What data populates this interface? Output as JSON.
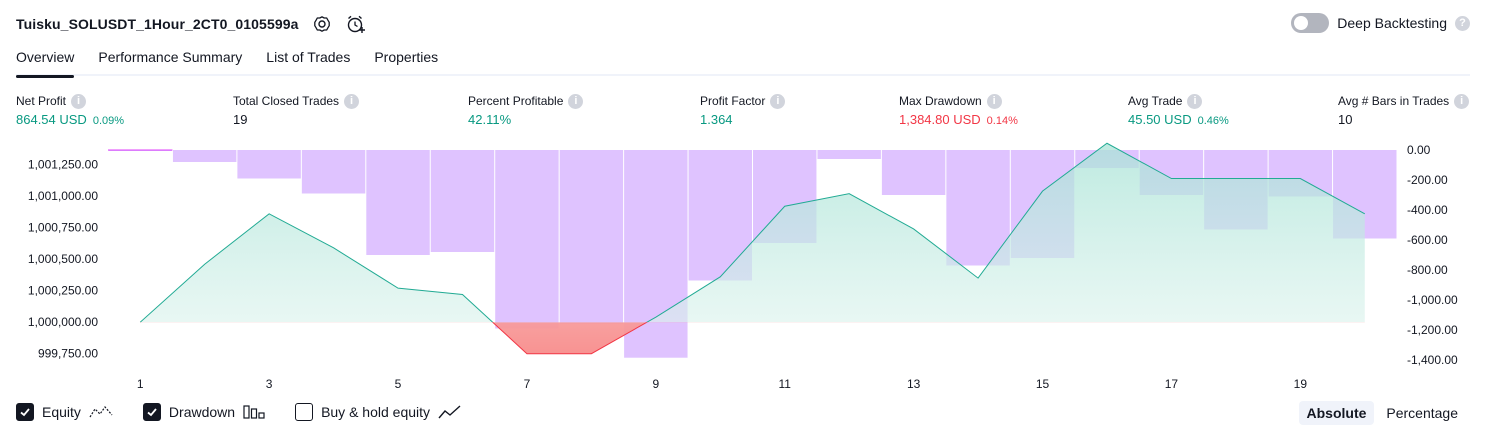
{
  "header": {
    "strategy_name": "Tuisku_SOLUSDT_1Hour_2CT0_0105599a",
    "icons": [
      "settings-icon",
      "alert-clock-icon"
    ]
  },
  "deep_backtesting": {
    "label": "Deep Backtesting",
    "enabled": false,
    "help": "?"
  },
  "tabs": [
    {
      "label": "Overview",
      "active": true
    },
    {
      "label": "Performance Summary",
      "active": false
    },
    {
      "label": "List of Trades",
      "active": false
    },
    {
      "label": "Properties",
      "active": false
    }
  ],
  "metrics": [
    {
      "label": "Net Profit",
      "value": "864.54 USD",
      "sub": "0.09%",
      "tone": "pos"
    },
    {
      "label": "Total Closed Trades",
      "value": "19",
      "sub": "",
      "tone": "neu"
    },
    {
      "label": "Percent Profitable",
      "value": "42.11%",
      "sub": "",
      "tone": "pos"
    },
    {
      "label": "Profit Factor",
      "value": "1.364",
      "sub": "",
      "tone": "pos"
    },
    {
      "label": "Max Drawdown",
      "value": "1,384.80 USD",
      "sub": "0.14%",
      "tone": "neg"
    },
    {
      "label": "Avg Trade",
      "value": "45.50 USD",
      "sub": "0.46%",
      "tone": "pos"
    },
    {
      "label": "Avg # Bars in Trades",
      "value": "10",
      "sub": "",
      "tone": "neu"
    }
  ],
  "chart_data": {
    "type": "line",
    "trades": [
      1,
      2,
      3,
      4,
      5,
      6,
      7,
      8,
      9,
      10,
      11,
      12,
      13,
      14,
      15,
      16,
      17,
      18,
      19,
      20
    ],
    "x_tick_labels": [
      "1",
      "3",
      "5",
      "7",
      "9",
      "11",
      "13",
      "15",
      "17",
      "19"
    ],
    "series": [
      {
        "name": "Equity",
        "axis": "left",
        "values": [
          1000000,
          1000460,
          1000860,
          1000590,
          1000270,
          1000220,
          999750,
          999750,
          1000040,
          1000360,
          1000920,
          1001020,
          1000740,
          1000350,
          1001040,
          1001420,
          1001140,
          1001140,
          1001140,
          1000860
        ]
      },
      {
        "name": "Drawdown",
        "axis": "right",
        "values": [
          0,
          -80,
          -190,
          -290,
          -700,
          -680,
          -1190,
          -1160,
          -1384.8,
          -870,
          -620,
          -60,
          -300,
          -770,
          -720,
          -120,
          -300,
          -530,
          -310,
          -590
        ]
      }
    ],
    "y_left": {
      "ticks": [
        "1,001,250.00",
        "1,001,000.00",
        "1,000,750.00",
        "1,000,500.00",
        "1,000,250.00",
        "1,000,000.00",
        "999,750.00"
      ],
      "min": 999700,
      "max": 1001430
    },
    "y_right": {
      "ticks": [
        "0.00",
        "-200.00",
        "-400.00",
        "-600.00",
        "-800.00",
        "-1,000.00",
        "-1,200.00",
        "-1,400.00"
      ],
      "min": -1400,
      "max": 0
    },
    "colors": {
      "equity_line": "#22ab94",
      "equity_fill": "#cdeee6",
      "below_fill": "#f7a9a7",
      "below_line": "#f23645",
      "drawdown_bar": "#d9b8ff"
    }
  },
  "legend": [
    {
      "label": "Equity",
      "checked": true,
      "icon": "equity-line-icon"
    },
    {
      "label": "Drawdown",
      "checked": true,
      "icon": "drawdown-bars-icon"
    },
    {
      "label": "Buy & hold equity",
      "checked": false,
      "icon": "buy-hold-line-icon"
    }
  ],
  "mode": [
    {
      "label": "Absolute",
      "active": true
    },
    {
      "label": "Percentage",
      "active": false
    }
  ]
}
